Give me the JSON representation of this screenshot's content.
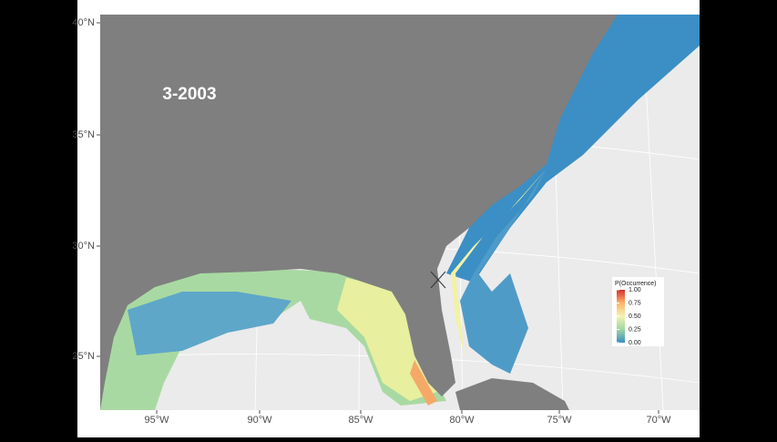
{
  "map": {
    "title": "3-2003",
    "y_axis_labels": [
      "40°N",
      "35°N",
      "30°N",
      "25°N"
    ],
    "x_axis_labels": [
      "95°W",
      "90°W",
      "85°W",
      "80°W",
      "75°W",
      "70°W"
    ],
    "legend": {
      "title": "P(Occurrence)",
      "ticks": [
        "1.00",
        "0.75",
        "0.50",
        "0.25",
        "0.00"
      ]
    }
  }
}
